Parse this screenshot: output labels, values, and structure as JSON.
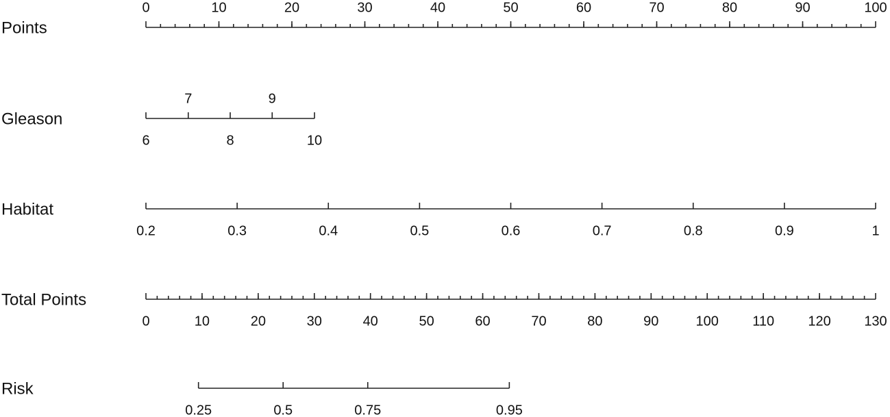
{
  "chart_data": {
    "type": "nomogram",
    "axes": [
      {
        "label": "Points",
        "xlim": [
          0,
          100
        ],
        "ticks": [
          0,
          10,
          20,
          30,
          40,
          50,
          60,
          70,
          80,
          90,
          100
        ],
        "minor_step": 2,
        "labels_side": "above"
      },
      {
        "label": "Gleason",
        "ticks": [
          6,
          7,
          8,
          9,
          10
        ],
        "tick_points": [
          0,
          5.8,
          11.55,
          17.3,
          23.1
        ],
        "labels_side": "alternate"
      },
      {
        "label": "Habitat",
        "ticks": [
          0.2,
          0.3,
          0.4,
          0.5,
          0.6,
          0.7,
          0.8,
          0.9,
          1
        ],
        "tick_points": [
          0,
          12.5,
          25,
          37.5,
          50,
          62.5,
          75,
          87.5,
          100
        ],
        "labels_side": "below"
      },
      {
        "label": "Total Points",
        "xlim": [
          0,
          130
        ],
        "ticks": [
          0,
          10,
          20,
          30,
          40,
          50,
          60,
          70,
          80,
          90,
          100,
          110,
          120,
          130
        ],
        "minor_step": 2,
        "labels_side": "below"
      },
      {
        "label": "Risk",
        "ticks": [
          0.25,
          0.5,
          0.75,
          0.95
        ],
        "tick_points": [
          7.2,
          18.8,
          30.4,
          49.8
        ],
        "labels_side": "below"
      }
    ]
  }
}
